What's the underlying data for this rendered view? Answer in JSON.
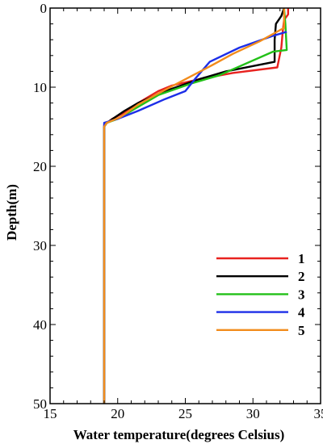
{
  "chart_data": {
    "type": "line",
    "orientation": "depth-profile",
    "xlabel": "Water temperature(degrees Celsius)",
    "ylabel": "Depth(m)",
    "xlim": [
      15,
      35
    ],
    "ylim": [
      0,
      50
    ],
    "y_inverted": true,
    "xticks": [
      15,
      20,
      25,
      30,
      35
    ],
    "yticks": [
      0,
      10,
      20,
      30,
      40,
      50
    ],
    "grid": false,
    "legend_position": "right-middle",
    "series": [
      {
        "name": "1",
        "color": "#e8221f",
        "points": [
          [
            32.6,
            0
          ],
          [
            32.6,
            0.8
          ],
          [
            32.3,
            1.5
          ],
          [
            32.2,
            3
          ],
          [
            32.1,
            5
          ],
          [
            31.8,
            7.5
          ],
          [
            28.5,
            8.2
          ],
          [
            26,
            9
          ],
          [
            24,
            9.8
          ],
          [
            23,
            10.5
          ],
          [
            21.5,
            12
          ],
          [
            20.5,
            13.2
          ],
          [
            19.6,
            14
          ],
          [
            19.0,
            14.8
          ],
          [
            19.0,
            50
          ]
        ]
      },
      {
        "name": "2",
        "color": "#000000",
        "points": [
          [
            32.3,
            0
          ],
          [
            32.1,
            1
          ],
          [
            31.7,
            2
          ],
          [
            31.6,
            4
          ],
          [
            31.6,
            6.8
          ],
          [
            28.0,
            8
          ],
          [
            26.0,
            9
          ],
          [
            23.5,
            10.5
          ],
          [
            21.5,
            12
          ],
          [
            20.5,
            13
          ],
          [
            19.2,
            14.5
          ],
          [
            19.0,
            15
          ],
          [
            19.0,
            50
          ]
        ]
      },
      {
        "name": "3",
        "color": "#22c018",
        "points": [
          [
            32.3,
            0
          ],
          [
            32.4,
            2
          ],
          [
            32.5,
            5.3
          ],
          [
            31.5,
            5.5
          ],
          [
            27.5,
            8.5
          ],
          [
            25.5,
            9.5
          ],
          [
            23.0,
            11
          ],
          [
            21.5,
            12.5
          ],
          [
            20.0,
            14
          ],
          [
            19.2,
            14.5
          ],
          [
            19.0,
            15
          ],
          [
            19.0,
            50
          ]
        ]
      },
      {
        "name": "4",
        "color": "#1c2ee8",
        "points": [
          [
            32.5,
            3
          ],
          [
            31.5,
            3.5
          ],
          [
            29.0,
            5
          ],
          [
            26.8,
            6.8
          ],
          [
            25.7,
            9
          ],
          [
            25.0,
            10.5
          ],
          [
            23.5,
            11.5
          ],
          [
            21.5,
            13
          ],
          [
            20.0,
            14
          ],
          [
            19.0,
            14.5
          ],
          [
            19.0,
            50
          ]
        ]
      },
      {
        "name": "5",
        "color": "#f28c1c",
        "points": [
          [
            32.3,
            0
          ],
          [
            32.3,
            2.5
          ],
          [
            30.5,
            4.2
          ],
          [
            28.5,
            5.8
          ],
          [
            27.0,
            7.2
          ],
          [
            25.0,
            9
          ],
          [
            23.0,
            10.8
          ],
          [
            21.5,
            12.2
          ],
          [
            20.2,
            13.8
          ],
          [
            19.2,
            14.5
          ],
          [
            19.0,
            15
          ],
          [
            19.0,
            50
          ]
        ]
      }
    ]
  }
}
